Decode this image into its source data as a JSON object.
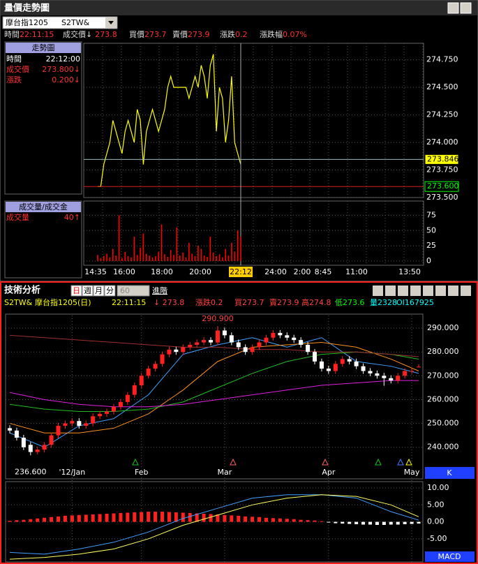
{
  "top_panel": {
    "title": "量價走勢圖",
    "symbol": "摩台指1205",
    "code": "S2TW&",
    "quote": [
      {
        "label": "時間",
        "value": "22:11:15"
      },
      {
        "label": "成交價↓",
        "value": "273.8"
      },
      {
        "label": "買價",
        "value": "273.7"
      },
      {
        "label": "賣價",
        "value": "273.9"
      },
      {
        "label": "漲跌",
        "value": "0.2"
      },
      {
        "label": "漲跌幅",
        "value": "0.07%"
      }
    ],
    "info_box": {
      "title": "走勢圖",
      "rows": [
        {
          "label": "時間",
          "value": "22:12:00"
        },
        {
          "label": "成交價",
          "value": "273.800↓"
        },
        {
          "label": "漲跌",
          "value": "0.200↓"
        }
      ]
    },
    "volume_box": {
      "title": "成交量/成交金",
      "rows": [
        {
          "label": "成交量",
          "value": "40↑"
        }
      ]
    },
    "price_chart": {
      "type": "line",
      "color": "#ffff00",
      "values": [
        273.6,
        273.6,
        273.8,
        273.9,
        274.0,
        274.2,
        274.1,
        274.0,
        273.9,
        274.1,
        274.2,
        274.1,
        274.0,
        274.3,
        274.2,
        273.8,
        274.1,
        274.2,
        274.3,
        274.2,
        274.1,
        274.2,
        274.3,
        274.5,
        274.6,
        274.5,
        274.5,
        274.5,
        274.5,
        274.5,
        274.4,
        274.5,
        274.6,
        274.5,
        274.7,
        274.6,
        274.4,
        274.7,
        274.8,
        274.1,
        274.5,
        274.4,
        274.0,
        274.2,
        274.6,
        274.0,
        273.9,
        273.8
      ],
      "ylim": [
        273.5,
        274.9
      ],
      "yticks": [
        {
          "value": 273.5,
          "label": "273.500"
        },
        {
          "value": 273.75,
          "label": "273.750"
        },
        {
          "value": 274,
          "label": "274.000"
        },
        {
          "value": 274.25,
          "label": "274.250"
        },
        {
          "value": 274.5,
          "label": "274.500"
        },
        {
          "value": 274.75,
          "label": "274.750"
        }
      ],
      "markers": [
        {
          "value": 273.846,
          "label": "273.846"
        },
        {
          "value": 273.6,
          "label": "273.600"
        }
      ],
      "time_labels": [
        "14:35",
        "16:00",
        "18:00",
        "20:00",
        "22:12",
        "24:00",
        "2:00",
        "8:45",
        "11:00",
        "13:50"
      ]
    },
    "volume_chart": {
      "type": "bar",
      "color": "#ff0000",
      "values": [
        10,
        5,
        8,
        12,
        6,
        20,
        9,
        75,
        5,
        15,
        8,
        6,
        40,
        10,
        22,
        45,
        12,
        9,
        6,
        8,
        15,
        60,
        11,
        7,
        18,
        10,
        55,
        9,
        14,
        6,
        30,
        12,
        8,
        25,
        20,
        9,
        7,
        40,
        14,
        8,
        11,
        6,
        20,
        9,
        30,
        15,
        50,
        40
      ],
      "ylim": [
        0,
        96
      ],
      "yticks": [
        0,
        25,
        50,
        75
      ]
    }
  },
  "bottom_panel": {
    "title": "技術分析",
    "periods": [
      "日",
      "週",
      "月",
      "分"
    ],
    "interval": "60",
    "advanced": "進階",
    "quote": [
      {
        "text": "S2TW&",
        "color": "#ffff00"
      },
      {
        "text": "摩台指1205(日)",
        "color": "#ffff00"
      },
      {
        "text": "22:11:15",
        "color": "#ffff00"
      },
      {
        "text": "↓ 273.8",
        "color": "#ff4040"
      },
      {
        "text": "漲跌0.2",
        "color": "#ff4040"
      },
      {
        "text": "買273.7",
        "color": "#ff4040"
      },
      {
        "text": "賣273.9",
        "color": "#ff4040"
      },
      {
        "text": "高274.8",
        "color": "#ff4040"
      },
      {
        "text": "低273.6",
        "color": "#00ff00"
      },
      {
        "text": "量2328",
        "color": "#00ffff"
      },
      {
        "text": "OI167925",
        "color": "#00ffff"
      }
    ],
    "k_chart": {
      "type": "candlestick",
      "label": "K",
      "categories": [
        null,
        null,
        null,
        null,
        null,
        null,
        null,
        null,
        null,
        "'12/Jan",
        null,
        null,
        null,
        null,
        null,
        null,
        null,
        null,
        null,
        "Feb",
        null,
        null,
        null,
        null,
        null,
        null,
        null,
        null,
        null,
        null,
        null,
        "Mar",
        null,
        null,
        null,
        null,
        null,
        null,
        null,
        null,
        null,
        null,
        null,
        null,
        null,
        null,
        "Apr",
        null,
        null,
        null,
        null,
        null,
        null,
        null,
        null,
        null,
        null,
        null,
        "May",
        null
      ],
      "open": [
        248,
        247,
        244,
        241,
        238,
        239,
        241,
        245,
        249,
        250,
        251,
        249,
        250,
        253,
        254,
        255,
        257,
        259,
        262,
        266,
        270,
        273,
        275,
        279,
        281,
        280,
        282,
        283,
        284,
        285,
        284,
        289,
        287,
        284,
        282,
        280,
        282,
        284,
        286,
        288,
        287,
        286,
        285,
        283,
        280,
        276,
        273,
        272,
        275,
        277,
        276,
        274,
        272,
        271,
        270,
        269,
        268,
        270,
        272,
        273.7
      ],
      "high": [
        249.2,
        248.2,
        245.2,
        242.2,
        240.2,
        242.2,
        246.2,
        250.2,
        251.2,
        252.2,
        252.2,
        251.2,
        254.2,
        255.2,
        256.2,
        258.2,
        260.2,
        263.2,
        267.2,
        271.2,
        274.2,
        276.2,
        280.2,
        282.2,
        282.2,
        283.2,
        284.2,
        285.2,
        286.2,
        286.2,
        290.9,
        290.2,
        288.2,
        285.2,
        283.2,
        283.2,
        285.2,
        287.2,
        289.2,
        289.2,
        288.2,
        287.2,
        286.2,
        284.2,
        281.2,
        277.2,
        274.2,
        276.2,
        278.2,
        278.2,
        277.2,
        275.2,
        273.2,
        272.2,
        271.2,
        270.2,
        271.2,
        273.2,
        273.2,
        274.8
      ],
      "low": [
        245.8,
        242.8,
        238.8,
        236.6,
        237.0,
        237.8,
        239.8,
        243.8,
        247.8,
        248.8,
        247.8,
        247.8,
        248.8,
        251.8,
        252.8,
        253.8,
        255.8,
        257.8,
        260.8,
        264.8,
        268.8,
        271.8,
        273.8,
        277.8,
        278.8,
        278.8,
        280.8,
        281.8,
        282.8,
        282.8,
        282.8,
        285.8,
        282.8,
        280.8,
        278.8,
        278.8,
        280.8,
        282.8,
        284.8,
        285.8,
        284.8,
        283.8,
        281.8,
        278.8,
        274.8,
        271.8,
        270.8,
        270.8,
        273.8,
        274.8,
        272.8,
        270.8,
        269.8,
        268.8,
        265.8,
        266.8,
        266.8,
        268.8,
        270.8,
        273.6
      ],
      "close": [
        247,
        244,
        240,
        238,
        239,
        241,
        245,
        249,
        250,
        251,
        249,
        250,
        253,
        254,
        255,
        257,
        259,
        262,
        266,
        270,
        273,
        275,
        279,
        281,
        280,
        282,
        283,
        284,
        285,
        284,
        289,
        287,
        284,
        282,
        280,
        282,
        284,
        286,
        288,
        287,
        286,
        285,
        283,
        280,
        276,
        273,
        272,
        275,
        277,
        276,
        274,
        272,
        271,
        270,
        269,
        268,
        270,
        272,
        272,
        273.8
      ],
      "up_color": "#ff2020",
      "down_color": "#ffffff",
      "ylim": [
        232,
        295.3
      ],
      "yticks": [
        {
          "value": 240,
          "label": "240.000"
        },
        {
          "value": 250,
          "label": "250.000"
        },
        {
          "value": 260,
          "label": "260.000"
        },
        {
          "value": 270,
          "label": "270.000"
        },
        {
          "value": 280,
          "label": "280.000"
        },
        {
          "value": 290,
          "label": "290.000"
        }
      ],
      "high_label": {
        "value": 290.9,
        "label": "290.900"
      },
      "low_label": {
        "value": 236.6,
        "label": "236.600"
      },
      "ma": {
        "x": [
          0,
          5,
          10,
          15,
          20,
          25,
          30,
          35,
          40,
          45,
          50,
          55,
          59
        ],
        "series": [
          {
            "color": "#40a0ff",
            "values": [
              246,
              240,
              249,
              252,
              262,
              279,
              283,
              286,
              282,
              286,
              276,
              274,
              271
            ]
          },
          {
            "color": "#ff9020",
            "values": [
              250,
              246,
              246,
              248,
              254,
              264,
              276,
              282,
              283,
              284,
              282,
              277,
              272
            ]
          },
          {
            "color": "#20c020",
            "values": [
              258,
              256,
              255,
              255,
              256,
              259,
              265,
              271,
              276,
              279,
              280,
              279,
              277
            ]
          },
          {
            "color": "#e020e0",
            "values": [
              263,
              260,
              258,
              257,
              257,
              258,
              260,
              262,
              264,
              266,
              267,
              268,
              268
            ]
          },
          {
            "color": "#a03030",
            "values": [
              287,
              286,
              285,
              284,
              283,
              282,
              282,
              281,
              281,
              280,
              280,
              279,
              278
            ]
          }
        ]
      }
    },
    "macd_chart": {
      "type": "macd",
      "label": "MACD",
      "histogram": [
        0.3,
        0.5,
        0.6,
        0.8,
        1.0,
        1.2,
        1.4,
        1.6,
        1.8,
        1.9,
        2.0,
        2.1,
        2.2,
        2.3,
        2.4,
        2.5,
        2.6,
        2.7,
        2.8,
        2.9,
        3.0,
        3.0,
        3.0,
        2.9,
        2.8,
        2.7,
        2.6,
        2.5,
        2.4,
        2.3,
        2.2,
        2.0,
        1.9,
        1.8,
        1.6,
        1.5,
        1.4,
        1.2,
        1.1,
        1.0,
        0.9,
        0.8,
        0.6,
        0.5,
        0.4,
        0.2,
        -0.2,
        -0.4,
        -0.5,
        -0.6,
        -0.7,
        -0.8,
        -0.8,
        -0.9,
        -0.9,
        -0.8,
        -0.8,
        -0.7,
        -0.6,
        -0.5
      ],
      "pos_color": "#ff2020",
      "neg_color": "#ffffff",
      "x": [
        0,
        5,
        10,
        15,
        20,
        25,
        30,
        35,
        40,
        45,
        50,
        55,
        59
      ],
      "series": [
        {
          "color": "#40a0ff",
          "values": [
            -9,
            -9.5,
            -8,
            -6,
            -3,
            1,
            4,
            7,
            8,
            8,
            7,
            3,
            0.5
          ]
        },
        {
          "color": "#ffff60",
          "values": [
            -11,
            -10.5,
            -9.5,
            -8,
            -5,
            -1,
            2,
            5,
            7,
            8,
            7.5,
            5,
            1.5
          ]
        }
      ],
      "ylim": [
        -11.8,
        11.85
      ],
      "yticks": [
        {
          "value": -5,
          "label": "-5.00"
        },
        {
          "value": 0,
          "label": "0.00"
        },
        {
          "value": 5,
          "label": "5.00"
        },
        {
          "value": 10,
          "label": "10.00"
        }
      ]
    }
  }
}
